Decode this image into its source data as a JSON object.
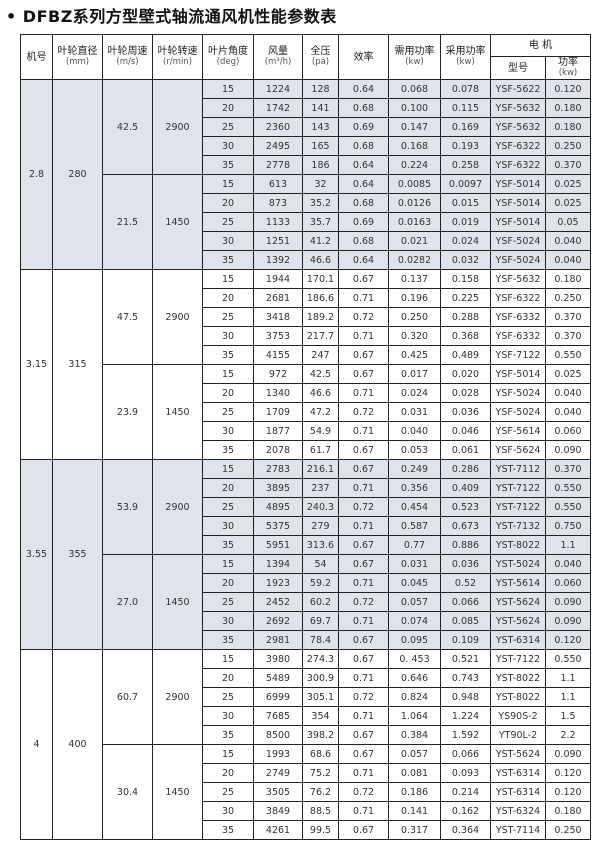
{
  "title": "• DFBZ系列方型壁式轴流通风机性能参数表",
  "colors": {
    "shaded_group": "#dfe4ea",
    "plain_group": "#ffffff",
    "border": "#222222"
  },
  "headers": {
    "machine_no": "机号",
    "diameter": {
      "label": "叶轮直径",
      "unit": "(mm)"
    },
    "tip_speed": {
      "label": "叶轮周速",
      "unit": "(m/s)"
    },
    "rpm": {
      "label": "叶轮转速",
      "unit": "(r/min)"
    },
    "blade_angle": {
      "label": "叶片角度",
      "unit": "(deg)"
    },
    "airflow": {
      "label": "风量",
      "unit": "(m³/h)"
    },
    "pressure": {
      "label": "全压",
      "unit": "(pa)"
    },
    "efficiency": "效率",
    "required_power": {
      "label": "需用功率",
      "unit": "(kw)"
    },
    "adopted_power": {
      "label": "采用功率",
      "unit": "(kw)"
    },
    "motor": "电 机",
    "motor_model": "型号",
    "motor_power": {
      "label": "功率",
      "unit": "(kw)"
    }
  },
  "groups": [
    {
      "machine_no": "2.8",
      "diameter": "280",
      "speeds": [
        {
          "tip_speed": "42.5",
          "rpm": "2900",
          "rows": [
            [
              "15",
              "1224",
              "128",
              "0.64",
              "0.068",
              "0.078",
              "YSF-5622",
              "0.120"
            ],
            [
              "20",
              "1742",
              "141",
              "0.68",
              "0.100",
              "0.115",
              "YSF-5632",
              "0.180"
            ],
            [
              "25",
              "2360",
              "143",
              "0.69",
              "0.147",
              "0.169",
              "YSF-5632",
              "0.180"
            ],
            [
              "30",
              "2495",
              "165",
              "0.68",
              "0.168",
              "0.193",
              "YSF-6322",
              "0.250"
            ],
            [
              "35",
              "2778",
              "186",
              "0.64",
              "0.224",
              "0.258",
              "YSF-6322",
              "0.370"
            ]
          ]
        },
        {
          "tip_speed": "21.5",
          "rpm": "1450",
          "rows": [
            [
              "15",
              "613",
              "32",
              "0.64",
              "0.0085",
              "0.0097",
              "YSF-5014",
              "0.025"
            ],
            [
              "20",
              "873",
              "35.2",
              "0.68",
              "0.0126",
              "0.015",
              "YSF-5014",
              "0.025"
            ],
            [
              "25",
              "1133",
              "35.7",
              "0.69",
              "0.0163",
              "0.019",
              "YSF-5014",
              "0.05"
            ],
            [
              "30",
              "1251",
              "41.2",
              "0.68",
              "0.021",
              "0.024",
              "YSF-5024",
              "0.040"
            ],
            [
              "35",
              "1392",
              "46.6",
              "0.64",
              "0.0282",
              "0.032",
              "YSF-5024",
              "0.040"
            ]
          ]
        }
      ]
    },
    {
      "machine_no": "3.15",
      "diameter": "315",
      "speeds": [
        {
          "tip_speed": "47.5",
          "rpm": "2900",
          "rows": [
            [
              "15",
              "1944",
              "170.1",
              "0.67",
              "0.137",
              "0.158",
              "YSF-5632",
              "0.180"
            ],
            [
              "20",
              "2681",
              "186.6",
              "0.71",
              "0.196",
              "0.225",
              "YSF-6322",
              "0.250"
            ],
            [
              "25",
              "3418",
              "189.2",
              "0.72",
              "0.250",
              "0.288",
              "YSF-6332",
              "0.370"
            ],
            [
              "30",
              "3753",
              "217.7",
              "0.71",
              "0.320",
              "0.368",
              "YSF-6332",
              "0.370"
            ],
            [
              "35",
              "4155",
              "247",
              "0.67",
              "0.425",
              "0.489",
              "YSF-7122",
              "0.550"
            ]
          ]
        },
        {
          "tip_speed": "23.9",
          "rpm": "1450",
          "rows": [
            [
              "15",
              "972",
              "42.5",
              "0.67",
              "0.017",
              "0.020",
              "YSF-5014",
              "0.025"
            ],
            [
              "20",
              "1340",
              "46.6",
              "0.71",
              "0.024",
              "0.028",
              "YSF-5024",
              "0.040"
            ],
            [
              "25",
              "1709",
              "47.2",
              "0.72",
              "0.031",
              "0.036",
              "YSF-5024",
              "0.040"
            ],
            [
              "30",
              "1877",
              "54.9",
              "0.71",
              "0.040",
              "0.046",
              "YSF-5614",
              "0.060"
            ],
            [
              "35",
              "2078",
              "61.7",
              "0.67",
              "0.053",
              "0.061",
              "YSF-5624",
              "0.090"
            ]
          ]
        }
      ]
    },
    {
      "machine_no": "3.55",
      "diameter": "355",
      "speeds": [
        {
          "tip_speed": "53.9",
          "rpm": "2900",
          "rows": [
            [
              "15",
              "2783",
              "216.1",
              "0.67",
              "0.249",
              "0.286",
              "YST-7112",
              "0.370"
            ],
            [
              "20",
              "3895",
              "237",
              "0.71",
              "0.356",
              "0.409",
              "YST-7122",
              "0.550"
            ],
            [
              "25",
              "4895",
              "240.3",
              "0.72",
              "0.454",
              "0.523",
              "YST-7122",
              "0.550"
            ],
            [
              "30",
              "5375",
              "279",
              "0.71",
              "0.587",
              "0.673",
              "YST-7132",
              "0.750"
            ],
            [
              "35",
              "5951",
              "313.6",
              "0.67",
              "0.77",
              "0.886",
              "YST-8022",
              "1.1"
            ]
          ]
        },
        {
          "tip_speed": "27.0",
          "rpm": "1450",
          "rows": [
            [
              "15",
              "1394",
              "54",
              "0.67",
              "0.031",
              "0.036",
              "YST-5024",
              "0.040"
            ],
            [
              "20",
              "1923",
              "59.2",
              "0.71",
              "0.045",
              "0.52",
              "YST-5614",
              "0.060"
            ],
            [
              "25",
              "2452",
              "60.2",
              "0.72",
              "0.057",
              "0.066",
              "YST-5624",
              "0.090"
            ],
            [
              "30",
              "2692",
              "69.7",
              "0.71",
              "0.074",
              "0.085",
              "YST-5624",
              "0.090"
            ],
            [
              "35",
              "2981",
              "78.4",
              "0.67",
              "0.095",
              "0.109",
              "YST-6314",
              "0.120"
            ]
          ]
        }
      ]
    },
    {
      "machine_no": "4",
      "diameter": "400",
      "speeds": [
        {
          "tip_speed": "60.7",
          "rpm": "2900",
          "rows": [
            [
              "15",
              "3980",
              "274.3",
              "0.67",
              "0. 453",
              "0.521",
              "YST-7122",
              "0.550"
            ],
            [
              "20",
              "5489",
              "300.9",
              "0.71",
              "0.646",
              "0.743",
              "YST-8022",
              "1.1"
            ],
            [
              "25",
              "6999",
              "305.1",
              "0.72",
              "0.824",
              "0.948",
              "YST-8022",
              "1.1"
            ],
            [
              "30",
              "7685",
              "354",
              "0.71",
              "1.064",
              "1.224",
              "YS90S-2",
              "1.5"
            ],
            [
              "35",
              "8500",
              "398.2",
              "0.67",
              "0.384",
              "1.592",
              "YT90L-2",
              "2.2"
            ]
          ]
        },
        {
          "tip_speed": "30.4",
          "rpm": "1450",
          "rows": [
            [
              "15",
              "1993",
              "68.6",
              "0.67",
              "0.057",
              "0.066",
              "YST-5624",
              "0.090"
            ],
            [
              "20",
              "2749",
              "75.2",
              "0.71",
              "0.081",
              "0.093",
              "YST-6314",
              "0.120"
            ],
            [
              "25",
              "3505",
              "76.2",
              "0.72",
              "0.186",
              "0.214",
              "YST-6314",
              "0.120"
            ],
            [
              "30",
              "3849",
              "88.5",
              "0.71",
              "0.141",
              "0.162",
              "YST-6324",
              "0.180"
            ],
            [
              "35",
              "4261",
              "99.5",
              "0.67",
              "0.317",
              "0.364",
              "YST-7114",
              "0.250"
            ]
          ]
        }
      ]
    }
  ]
}
